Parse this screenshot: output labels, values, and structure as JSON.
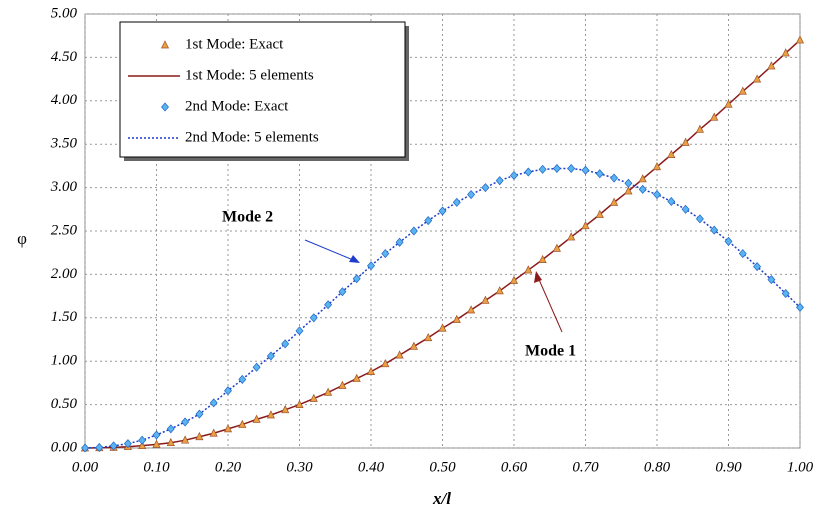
{
  "chart_data": {
    "type": "line",
    "x": [
      0,
      0.02,
      0.04,
      0.06,
      0.08,
      0.1,
      0.12,
      0.14,
      0.16,
      0.18,
      0.2,
      0.22,
      0.24,
      0.26,
      0.28,
      0.3,
      0.32,
      0.34,
      0.36,
      0.38,
      0.4,
      0.42,
      0.44,
      0.46,
      0.48,
      0.5,
      0.52,
      0.54,
      0.56,
      0.58,
      0.6,
      0.62,
      0.64,
      0.66,
      0.68,
      0.7,
      0.72,
      0.74,
      0.76,
      0.78,
      0.8,
      0.82,
      0.84,
      0.86,
      0.88,
      0.9,
      0.92,
      0.94,
      0.96,
      0.98,
      1
    ],
    "series": [
      {
        "name": "1st Mode: Exact",
        "color": "#e8a040",
        "marker": "triangle",
        "values": [
          0,
          0.002,
          0.007,
          0.015,
          0.027,
          0.042,
          0.061,
          0.09,
          0.13,
          0.17,
          0.22,
          0.27,
          0.33,
          0.38,
          0.44,
          0.5,
          0.57,
          0.64,
          0.72,
          0.8,
          0.88,
          0.97,
          1.07,
          1.17,
          1.27,
          1.38,
          1.48,
          1.59,
          1.7,
          1.81,
          1.93,
          2.05,
          2.17,
          2.3,
          2.43,
          2.56,
          2.69,
          2.83,
          2.96,
          3.1,
          3.24,
          3.38,
          3.52,
          3.67,
          3.81,
          3.96,
          4.11,
          4.25,
          4.4,
          4.55,
          4.7
        ]
      },
      {
        "name": "1st Mode: 5 elements",
        "color": "#8b1a1a",
        "line": "solid",
        "values": [
          0,
          0.002,
          0.007,
          0.015,
          0.027,
          0.042,
          0.061,
          0.09,
          0.13,
          0.17,
          0.22,
          0.27,
          0.33,
          0.38,
          0.44,
          0.5,
          0.57,
          0.64,
          0.72,
          0.8,
          0.88,
          0.97,
          1.07,
          1.17,
          1.27,
          1.38,
          1.48,
          1.59,
          1.7,
          1.81,
          1.93,
          2.05,
          2.17,
          2.3,
          2.43,
          2.56,
          2.69,
          2.83,
          2.96,
          3.1,
          3.24,
          3.38,
          3.52,
          3.67,
          3.81,
          3.96,
          4.11,
          4.25,
          4.4,
          4.55,
          4.7
        ]
      },
      {
        "name": "2nd Mode: Exact",
        "color": "#5ab4f0",
        "marker": "diamond",
        "values": [
          0,
          0.006,
          0.024,
          0.05,
          0.09,
          0.15,
          0.22,
          0.3,
          0.39,
          0.52,
          0.66,
          0.79,
          0.93,
          1.06,
          1.2,
          1.35,
          1.5,
          1.65,
          1.8,
          1.95,
          2.1,
          2.24,
          2.37,
          2.5,
          2.62,
          2.73,
          2.83,
          2.92,
          3,
          3.08,
          3.14,
          3.18,
          3.21,
          3.22,
          3.22,
          3.2,
          3.16,
          3.11,
          3.05,
          2.98,
          2.92,
          2.84,
          2.75,
          2.64,
          2.51,
          2.38,
          2.24,
          2.09,
          1.94,
          1.78,
          1.62
        ]
      },
      {
        "name": "2nd Mode: 5 elements",
        "color": "#1e3ccc",
        "line": "dotted",
        "values": [
          0,
          0.006,
          0.024,
          0.05,
          0.09,
          0.15,
          0.22,
          0.3,
          0.39,
          0.52,
          0.66,
          0.79,
          0.93,
          1.06,
          1.2,
          1.35,
          1.5,
          1.65,
          1.8,
          1.95,
          2.1,
          2.24,
          2.37,
          2.5,
          2.62,
          2.73,
          2.83,
          2.92,
          3,
          3.08,
          3.14,
          3.18,
          3.21,
          3.22,
          3.22,
          3.2,
          3.16,
          3.11,
          3.05,
          2.98,
          2.92,
          2.84,
          2.75,
          2.64,
          2.51,
          2.38,
          2.24,
          2.09,
          1.94,
          1.78,
          1.62
        ]
      }
    ],
    "xlabel": "x/l",
    "ylabel": "φ",
    "xlim": [
      0,
      1
    ],
    "ylim": [
      0,
      5
    ],
    "xticks": [
      {
        "value": 0,
        "label": "0.00"
      },
      {
        "value": 0.1,
        "label": "0.10"
      },
      {
        "value": 0.2,
        "label": "0.20"
      },
      {
        "value": 0.3,
        "label": "0.30"
      },
      {
        "value": 0.4,
        "label": "0.40"
      },
      {
        "value": 0.5,
        "label": "0.50"
      },
      {
        "value": 0.6,
        "label": "0.60"
      },
      {
        "value": 0.7,
        "label": "0.70"
      },
      {
        "value": 0.8,
        "label": "0.80"
      },
      {
        "value": 0.9,
        "label": "0.90"
      },
      {
        "value": 1,
        "label": "1.00"
      }
    ],
    "yticks": [
      {
        "value": 0,
        "label": "0.00"
      },
      {
        "value": 0.5,
        "label": "0.50"
      },
      {
        "value": 1,
        "label": "1.00"
      },
      {
        "value": 1.5,
        "label": "1.50"
      },
      {
        "value": 2,
        "label": "2.00"
      },
      {
        "value": 2.5,
        "label": "2.50"
      },
      {
        "value": 3,
        "label": "3.00"
      },
      {
        "value": 3.5,
        "label": "3.50"
      },
      {
        "value": 4,
        "label": "4.00"
      },
      {
        "value": 4.5,
        "label": "4.50"
      },
      {
        "value": 5,
        "label": "5.00"
      }
    ],
    "grid": true,
    "legend": "upper left",
    "annotations": [
      {
        "text": "Mode 2"
      },
      {
        "text": "Mode 1"
      }
    ]
  }
}
